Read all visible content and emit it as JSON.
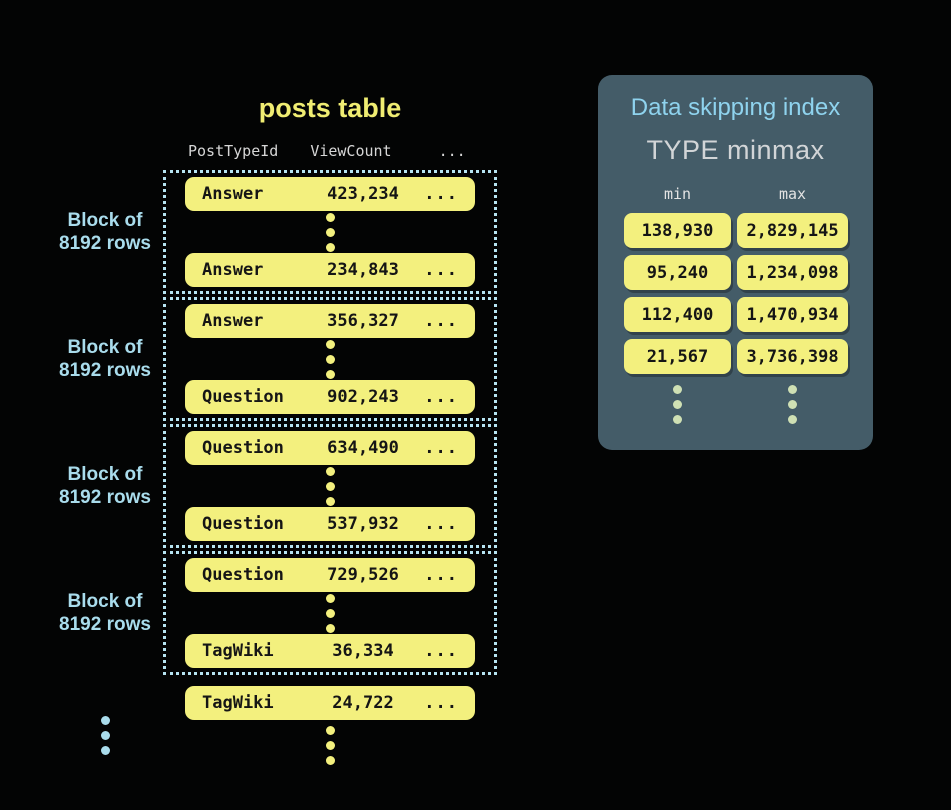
{
  "colors": {
    "background": "#030404",
    "accent_yellow": "#f3f07e",
    "title_yellow": "#f0ed72",
    "label_blue": "#a9dcec",
    "dotted_border_blue": "#b6e4f2",
    "panel_background": "#445c68",
    "panel_title_blue": "#8fd3ee",
    "panel_subtitle_gray": "#d2d5d7",
    "pale_dot_green": "#cfe0b4"
  },
  "posts_table": {
    "title": "posts table",
    "columns": {
      "col1": "PostTypeId",
      "col2": "ViewCount",
      "col3": "..."
    },
    "block_label": "Block of 8192 rows",
    "blocks": [
      {
        "rows": [
          {
            "type": "Answer",
            "views": "423,234",
            "more": "..."
          },
          {
            "type": "Answer",
            "views": "234,843",
            "more": "..."
          }
        ]
      },
      {
        "rows": [
          {
            "type": "Answer",
            "views": "356,327",
            "more": "..."
          },
          {
            "type": "Question",
            "views": "902,243",
            "more": "..."
          }
        ]
      },
      {
        "rows": [
          {
            "type": "Question",
            "views": "634,490",
            "more": "..."
          },
          {
            "type": "Question",
            "views": "537,932",
            "more": "..."
          }
        ]
      },
      {
        "rows": [
          {
            "type": "Question",
            "views": "729,526",
            "more": "..."
          },
          {
            "type": "TagWiki",
            "views": "36,334",
            "more": "..."
          }
        ]
      }
    ],
    "trailing_row": {
      "type": "TagWiki",
      "views": "24,722",
      "more": "..."
    }
  },
  "index_panel": {
    "title": "Data skipping index",
    "subtitle": "TYPE minmax",
    "min_header": "min",
    "max_header": "max",
    "entries": [
      {
        "min": "138,930",
        "max": "2,829,145"
      },
      {
        "min": "95,240",
        "max": "1,234,098"
      },
      {
        "min": "112,400",
        "max": "1,470,934"
      },
      {
        "min": "21,567",
        "max": "3,736,398"
      }
    ]
  }
}
